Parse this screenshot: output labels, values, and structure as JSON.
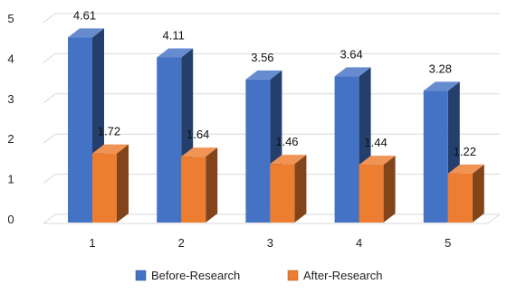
{
  "chart_data": {
    "type": "bar",
    "categories": [
      "1",
      "2",
      "3",
      "4",
      "5"
    ],
    "series": [
      {
        "name": "Before-Research",
        "values": [
          4.61,
          4.11,
          3.56,
          3.64,
          3.28
        ],
        "color": "#4472C4"
      },
      {
        "name": "After-Research",
        "values": [
          1.72,
          1.64,
          1.46,
          1.44,
          1.22
        ],
        "color": "#ED7D31"
      }
    ],
    "data_labels": [
      [
        "4.61",
        "4.11",
        "3.56",
        "3.64",
        "3.28"
      ],
      [
        "1.72",
        "1.64",
        "1.46",
        "1.44",
        "1.22"
      ]
    ],
    "y_ticks": [
      "0",
      "1",
      "2",
      "3",
      "4",
      "5"
    ],
    "ylim": [
      0,
      5
    ],
    "grid": true,
    "style": "3d-clustered",
    "legend_position": "bottom"
  }
}
